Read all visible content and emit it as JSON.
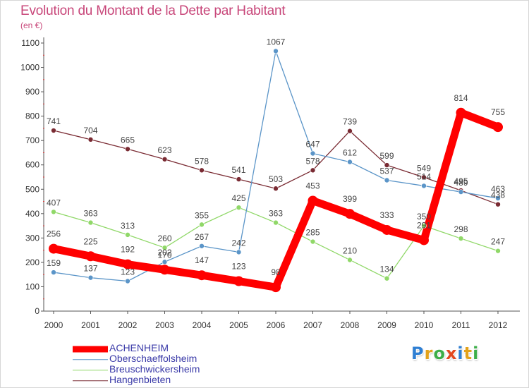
{
  "title": "Evolution du Montant de la Dette par Habitant",
  "subtitle": "(en €)",
  "brand": {
    "text": "Proxiti",
    "letter_colors": [
      "#2f7fd3",
      "#e3a21a",
      "#3cae48",
      "#e3481e",
      "#2f7fd3",
      "#e3a21a",
      "#3cae48"
    ]
  },
  "chart_data": {
    "type": "line",
    "title": "Evolution du Montant de la Dette par Habitant",
    "ylabel": "(en €)",
    "xlabel": "",
    "x": [
      "2000",
      "2001",
      "2002",
      "2003",
      "2004",
      "2005",
      "2006",
      "2007",
      "2008",
      "2009",
      "2010",
      "2011",
      "2012"
    ],
    "ylim": [
      0,
      1100
    ],
    "yticks": [
      "0",
      "100",
      "200",
      "300",
      "400",
      "500",
      "600",
      "700",
      "800",
      "900",
      "1000",
      "1100"
    ],
    "grid": false,
    "legend_position": "bottom-left",
    "series": [
      {
        "name": "ACHENHEIM",
        "color": "#ff0000",
        "values": [
          256,
          225,
          192,
          170,
          147,
          123,
          98,
          453,
          399,
          333,
          291,
          814,
          755
        ],
        "labels": [
          "256",
          "225",
          "192",
          "170",
          "147",
          "123",
          "98",
          "453",
          "399",
          "333",
          "291",
          "814",
          "755"
        ]
      },
      {
        "name": "Oberschaeffolsheim",
        "color": "#5b95c8",
        "values": [
          159,
          137,
          123,
          202,
          267,
          242,
          1067,
          647,
          612,
          537,
          514,
          489,
          463
        ],
        "labels": [
          "159",
          "137",
          "123",
          "202",
          "267",
          "242",
          "1067",
          "647",
          "612",
          "537",
          "514",
          "489",
          "463"
        ]
      },
      {
        "name": "Breuschwickersheim",
        "color": "#90d868",
        "values": [
          407,
          363,
          313,
          260,
          355,
          425,
          363,
          285,
          210,
          134,
          350,
          298,
          247
        ],
        "labels": [
          "407",
          "363",
          "313",
          "260",
          "355",
          "425",
          "363",
          "285",
          "210",
          "134",
          "350",
          "298",
          "247"
        ]
      },
      {
        "name": "Hangenbieten",
        "color": "#7a2b33",
        "values": [
          741,
          704,
          665,
          623,
          578,
          541,
          503,
          578,
          739,
          599,
          549,
          495,
          438
        ],
        "labels": [
          "741",
          "704",
          "665",
          "623",
          "578",
          "541",
          "503",
          "578",
          "739",
          "599",
          "549",
          "495",
          "438"
        ]
      }
    ]
  }
}
